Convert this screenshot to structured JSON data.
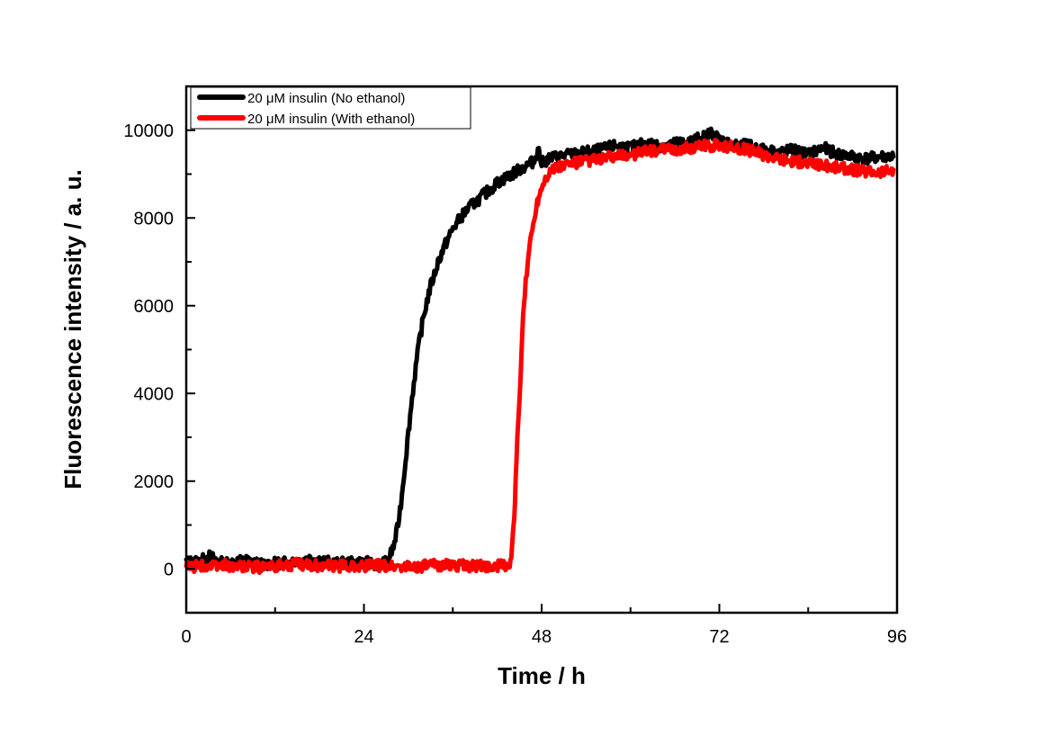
{
  "chart_data": {
    "type": "line",
    "title": "",
    "xlabel": "Time / h",
    "ylabel": "Fluorescence intensity / a. u.",
    "xlim": [
      0,
      96
    ],
    "ylim": [
      -1000,
      11000
    ],
    "xticks": [
      0,
      24,
      48,
      72,
      96
    ],
    "xtick_labels": [
      "0",
      "24",
      "48",
      "72",
      "96"
    ],
    "xminor": [
      12,
      36,
      60,
      84
    ],
    "yticks": [
      0,
      2000,
      4000,
      6000,
      8000,
      10000
    ],
    "ytick_labels": [
      "0",
      "2000",
      "4000",
      "6000",
      "8000",
      "10000"
    ],
    "yminor": [
      -1000,
      1000,
      3000,
      5000,
      7000,
      9000,
      11000
    ],
    "grid": false,
    "legend_position": "top-left",
    "series": [
      {
        "name": "20 μM insulin (No ethanol)",
        "color": "#000000",
        "x": [
          0,
          2,
          3,
          5,
          8,
          10,
          14,
          17,
          20,
          24,
          26,
          27,
          27.5,
          28,
          28.5,
          29,
          29.5,
          30,
          30.5,
          31,
          31.5,
          32,
          32.5,
          33,
          33.5,
          34,
          35,
          36,
          37,
          38,
          39,
          40,
          41,
          42,
          43,
          44,
          45,
          46,
          47,
          47.5,
          48,
          49,
          50,
          52,
          54,
          56,
          58,
          60,
          62,
          64,
          66,
          68,
          70,
          71,
          72,
          74,
          76,
          78,
          80,
          82,
          84,
          86,
          88,
          90,
          92,
          94,
          95.5
        ],
        "y": [
          150,
          180,
          300,
          120,
          200,
          100,
          150,
          250,
          120,
          150,
          100,
          150,
          300,
          500,
          900,
          1500,
          2300,
          3100,
          3900,
          4600,
          5200,
          5700,
          6100,
          6450,
          6700,
          7000,
          7400,
          7750,
          8000,
          8200,
          8350,
          8500,
          8650,
          8800,
          8900,
          9000,
          9100,
          9200,
          9300,
          9600,
          9250,
          9350,
          9400,
          9450,
          9500,
          9550,
          9650,
          9600,
          9700,
          9650,
          9700,
          9750,
          9850,
          9950,
          9800,
          9650,
          9650,
          9550,
          9500,
          9550,
          9450,
          9600,
          9450,
          9400,
          9350,
          9400,
          9400
        ]
      },
      {
        "name": "20 μM insulin (With ethanol)",
        "color": "#ff0000",
        "x": [
          0,
          5,
          10,
          15,
          20,
          25,
          30,
          35,
          40,
          43,
          43.8,
          44,
          44.3,
          44.6,
          45,
          45.3,
          45.6,
          46,
          46.3,
          46.6,
          47,
          47.3,
          47.6,
          48,
          48.3,
          48.6,
          49,
          50,
          51,
          52,
          54,
          56,
          58,
          60,
          62,
          64,
          66,
          68,
          70,
          72,
          74,
          76,
          78,
          80,
          82,
          84,
          86,
          88,
          90,
          92,
          94,
          95.5
        ],
        "y": [
          50,
          80,
          40,
          100,
          60,
          80,
          50,
          90,
          60,
          80,
          100,
          400,
          1200,
          2500,
          3800,
          5000,
          6000,
          6800,
          7300,
          7600,
          8000,
          8300,
          8500,
          8700,
          8850,
          8950,
          9050,
          9150,
          9200,
          9250,
          9300,
          9350,
          9400,
          9450,
          9500,
          9550,
          9550,
          9600,
          9650,
          9650,
          9600,
          9550,
          9450,
          9350,
          9300,
          9250,
          9200,
          9150,
          9100,
          9050,
          9050,
          9100
        ]
      }
    ]
  }
}
